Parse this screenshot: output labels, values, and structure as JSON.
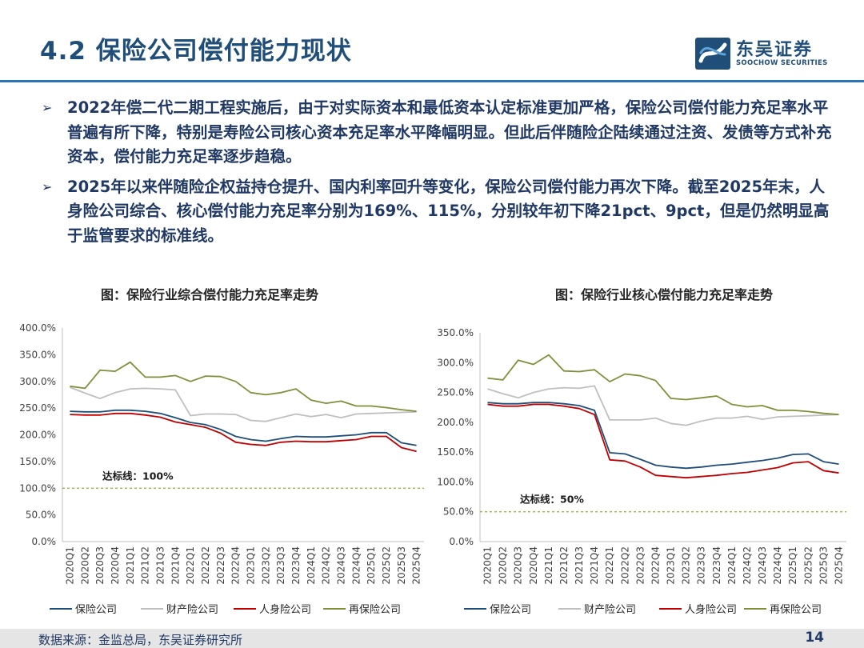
{
  "title": "4.2 保险公司偿付能力现状",
  "logo": {
    "cn": "东吴证券",
    "en": "SOOCHOW SECURITIES",
    "mark": "logo-mark-icon"
  },
  "bullets": [
    "2022年偿二代二期工程实施后，由于对实际资本和最低资本认定标准更加严格，保险公司偿付能力充足率水平普遍有所下降，特别是寿险公司核心资本充足率水平降幅明显。但此后伴随险企陆续通过注资、发债等方式补充资本，偿付能力充足率逐步趋稳。",
    "2025年以来伴随险企权益持仓提升、国内利率回升等变化，保险公司偿付能力再次下降。截至2025年末，人身险公司综合、核心偿付能力充足率分别为169%、115%，分别较年初下降21pct、9pct，但是仍然明显高于监管要求的标准线。"
  ],
  "bullet_marker": "➢",
  "chart_data": [
    {
      "type": "line",
      "title": "图：保险行业综合偿付能力充足率走势",
      "categories": [
        "2020Q1",
        "2020Q2",
        "2020Q3",
        "2020Q4",
        "2021Q1",
        "2021Q2",
        "2021Q3",
        "2021Q4",
        "2022Q1",
        "2022Q2",
        "2022Q3",
        "2022Q4",
        "2023Q1",
        "2023Q2",
        "2023Q3",
        "2023Q4",
        "2024Q1",
        "2024Q2",
        "2024Q3",
        "2024Q4",
        "2025Q1",
        "2025Q2",
        "2025Q3",
        "2025Q4"
      ],
      "ylim": [
        0,
        400
      ],
      "yticks": [
        0,
        50,
        100,
        150,
        200,
        250,
        300,
        350,
        400
      ],
      "ytick_labels": [
        "0.0%",
        "50.0%",
        "100.0%",
        "150.0%",
        "200.0%",
        "250.0%",
        "300.0%",
        "350.0%",
        "400.0%"
      ],
      "series": [
        {
          "name": "保险公司",
          "color": "#1f4e79",
          "values": [
            244,
            243,
            243,
            246,
            246,
            244,
            240,
            232,
            223,
            219,
            210,
            197,
            191,
            188,
            193,
            197,
            196,
            196,
            198,
            200,
            204,
            204,
            185,
            180
          ]
        },
        {
          "name": "财产险公司",
          "color": "#bfbfbf",
          "values": [
            289,
            278,
            268,
            279,
            286,
            287,
            286,
            284,
            236,
            239,
            239,
            238,
            227,
            225,
            232,
            239,
            234,
            238,
            232,
            239,
            240,
            241,
            242,
            243
          ]
        },
        {
          "name": "人身险公司",
          "color": "#c00000",
          "values": [
            238,
            237,
            237,
            240,
            240,
            237,
            233,
            224,
            219,
            214,
            203,
            186,
            182,
            180,
            186,
            188,
            187,
            187,
            189,
            191,
            197,
            197,
            176,
            169
          ]
        },
        {
          "name": "再保险公司",
          "color": "#7f8f3a",
          "values": [
            291,
            287,
            321,
            319,
            336,
            308,
            308,
            311,
            300,
            310,
            309,
            300,
            279,
            275,
            279,
            286,
            265,
            259,
            263,
            254,
            254,
            251,
            247,
            244
          ]
        }
      ],
      "reference_line": {
        "value": 100,
        "label": "达标线：100%"
      }
    },
    {
      "type": "line",
      "title": "图：保险行业核心偿付能力充足率走势",
      "categories": [
        "2020Q1",
        "2020Q2",
        "2020Q3",
        "2020Q4",
        "2021Q1",
        "2021Q2",
        "2021Q3",
        "2021Q4",
        "2022Q1",
        "2022Q2",
        "2022Q3",
        "2022Q4",
        "2023Q1",
        "2023Q2",
        "2023Q3",
        "2023Q4",
        "2024Q1",
        "2024Q2",
        "2024Q3",
        "2024Q4",
        "2025Q1",
        "2025Q2",
        "2025Q3",
        "2025Q4"
      ],
      "ylim": [
        0,
        350
      ],
      "yticks": [
        0,
        50,
        100,
        150,
        200,
        250,
        300,
        350
      ],
      "ytick_labels": [
        "0.0%",
        "50.0%",
        "100.0%",
        "150.0%",
        "200.0%",
        "250.0%",
        "300.0%",
        "350.0%"
      ],
      "series": [
        {
          "name": "保险公司",
          "color": "#1f4e79",
          "values": [
            233,
            231,
            231,
            233,
            233,
            231,
            228,
            220,
            149,
            147,
            138,
            128,
            125,
            123,
            125,
            128,
            130,
            133,
            136,
            140,
            146,
            147,
            134,
            130
          ]
        },
        {
          "name": "财产险公司",
          "color": "#bfbfbf",
          "values": [
            256,
            248,
            241,
            250,
            256,
            258,
            257,
            261,
            204,
            204,
            204,
            207,
            198,
            195,
            202,
            207,
            207,
            210,
            205,
            209,
            210,
            211,
            212,
            213
          ]
        },
        {
          "name": "人身险公司",
          "color": "#c00000",
          "values": [
            230,
            227,
            227,
            230,
            230,
            227,
            223,
            213,
            137,
            135,
            125,
            111,
            109,
            107,
            109,
            111,
            114,
            116,
            120,
            124,
            132,
            134,
            119,
            115
          ]
        },
        {
          "name": "再保险公司",
          "color": "#7f8f3a",
          "values": [
            274,
            271,
            304,
            297,
            313,
            286,
            285,
            288,
            268,
            281,
            278,
            270,
            240,
            238,
            241,
            244,
            230,
            226,
            228,
            220,
            220,
            218,
            215,
            213
          ]
        }
      ],
      "reference_line": {
        "value": 50,
        "label": "达标线：50%"
      }
    }
  ],
  "footer": {
    "source": "数据来源：金监总局，东吴证券研究所",
    "page": "14"
  }
}
